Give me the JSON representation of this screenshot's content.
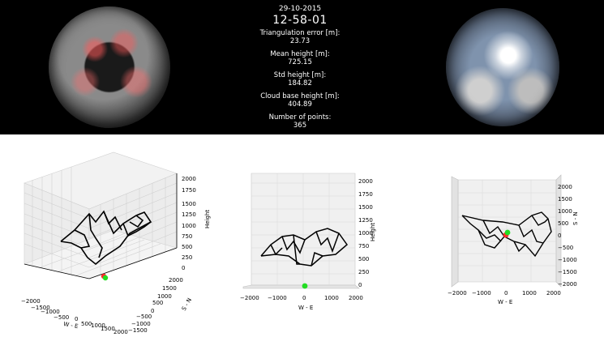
{
  "header": {
    "date": "29-10-2015",
    "time": "12-58-01",
    "stats": [
      {
        "label": "Triangulation error [m]:",
        "value": "23.73"
      },
      {
        "label": "Mean height [m]:",
        "value": "725.15"
      },
      {
        "label": "Std height [m]:",
        "value": "184.82"
      },
      {
        "label": "Cloud base height [m]:",
        "value": "404.89"
      },
      {
        "label": "Number of points:",
        "value": "365"
      }
    ]
  },
  "plots": {
    "perspective": {
      "z_ticks": [
        "0",
        "250",
        "500",
        "750",
        "1000",
        "1250",
        "1500",
        "1750",
        "2000"
      ],
      "z_label": "Height",
      "x_ticks": [
        "−2000",
        "−1500",
        "−1000",
        "−500",
        "0",
        "500",
        "1000",
        "1500",
        "2000"
      ],
      "x_label": "W - E",
      "y_ticks": [
        "2000",
        "1500",
        "1000",
        "500",
        "0",
        "−500",
        "−1000",
        "−1500"
      ],
      "y_label": "S - N"
    },
    "front": {
      "z_ticks": [
        "0",
        "250",
        "500",
        "750",
        "1000",
        "1250",
        "1500",
        "1750",
        "2000"
      ],
      "z_label": "Height",
      "x_ticks": [
        "−2000",
        "−1000",
        "0",
        "1000",
        "2000"
      ],
      "x_label": "W - E"
    },
    "top": {
      "y_ticks": [
        "−2000",
        "−1500",
        "−1000",
        "−500",
        "0",
        "500",
        "1000",
        "1500",
        "2000"
      ],
      "y_label": "S - N",
      "x_ticks": [
        "−2000",
        "−1000",
        "0",
        "1000",
        "2000"
      ],
      "x_label": "W - E"
    }
  },
  "colors": {
    "camera_red": "#ff2a2a",
    "camera_green": "#22dd22",
    "mesh": "#000000"
  }
}
